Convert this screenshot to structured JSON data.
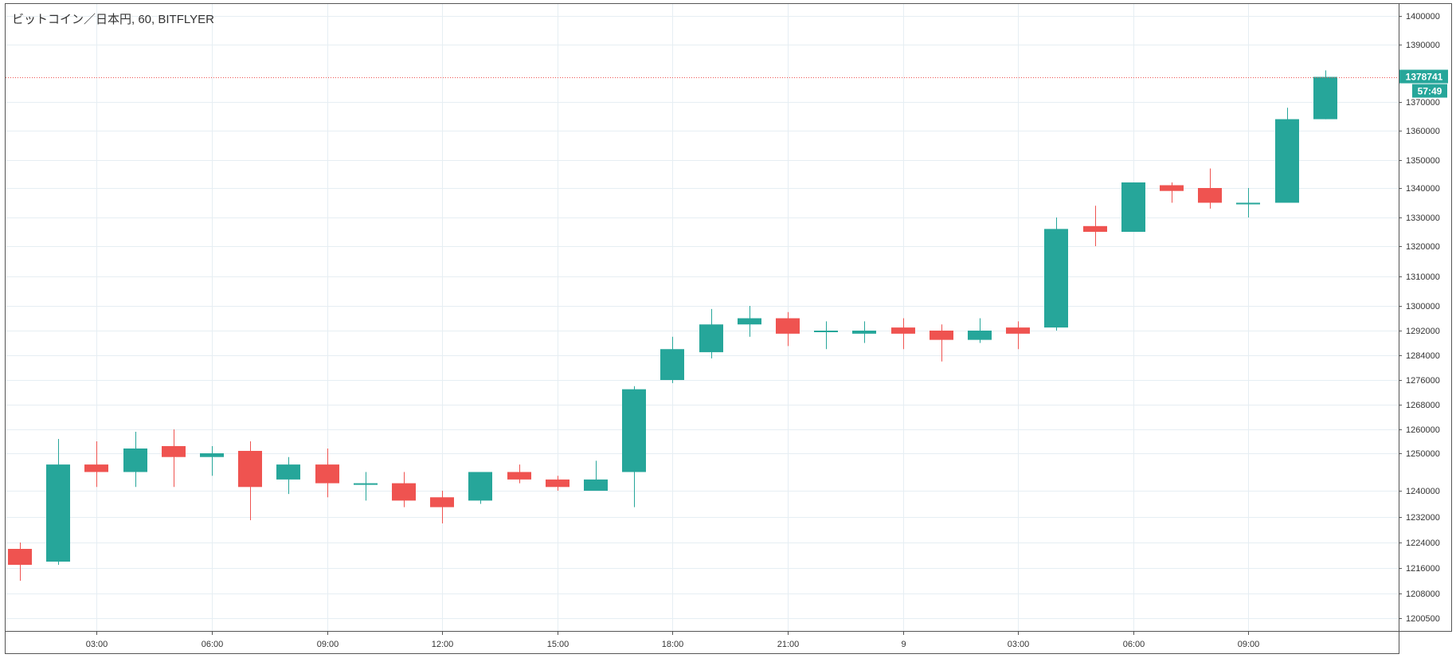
{
  "chart_data": {
    "type": "candlestick",
    "title": "ビットコイン／日本円, 60, BITFLYER",
    "symbol": "ビットコイン／日本円",
    "interval": "60",
    "exchange": "BITFLYER",
    "x_tick_labels": [
      "03:00",
      "06:00",
      "09:00",
      "12:00",
      "15:00",
      "18:00",
      "21:00",
      "9",
      "03:00",
      "06:00",
      "09:00"
    ],
    "y_tick_labels": [
      1400000,
      1390000,
      1370000,
      1360000,
      1350000,
      1340000,
      1330000,
      1320000,
      1310000,
      1300000,
      1292000,
      1284000,
      1276000,
      1268000,
      1260000,
      1250000,
      1240000,
      1232000,
      1224000,
      1216000,
      1208000,
      1200500
    ],
    "grid": true,
    "colors": {
      "up": "#26a69a",
      "down": "#ef5350",
      "last_price_line": "#ef5350",
      "last_price_label_bg": "#26a69a",
      "grid": "#e6eef3",
      "axis_text": "#333333"
    },
    "last_price": {
      "value": "1378741",
      "countdown": "57:49"
    },
    "candles": [
      {
        "o": 1222000,
        "h": 1224000,
        "l": 1212000,
        "c": 1217000
      },
      {
        "o": 1218000,
        "h": 1256000,
        "l": 1217000,
        "c": 1247000
      },
      {
        "o": 1247000,
        "h": 1255000,
        "l": 1241000,
        "c": 1245000
      },
      {
        "o": 1245000,
        "h": 1259000,
        "l": 1241000,
        "c": 1252000
      },
      {
        "o": 1253000,
        "h": 1260000,
        "l": 1241000,
        "c": 1249000
      },
      {
        "o": 1249000,
        "h": 1253000,
        "l": 1244000,
        "c": 1250000
      },
      {
        "o": 1251000,
        "h": 1255000,
        "l": 1231000,
        "c": 1241000
      },
      {
        "o": 1243000,
        "h": 1249000,
        "l": 1239000,
        "c": 1247000
      },
      {
        "o": 1247000,
        "h": 1252000,
        "l": 1238000,
        "c": 1242000
      },
      {
        "o": 1242000,
        "h": 1245000,
        "l": 1237000,
        "c": 1242000
      },
      {
        "o": 1242000,
        "h": 1245000,
        "l": 1235000,
        "c": 1237000
      },
      {
        "o": 1238000,
        "h": 1240000,
        "l": 1230000,
        "c": 1235000
      },
      {
        "o": 1237000,
        "h": 1245000,
        "l": 1236000,
        "c": 1245000
      },
      {
        "o": 1245000,
        "h": 1247000,
        "l": 1242000,
        "c": 1243000
      },
      {
        "o": 1243000,
        "h": 1244000,
        "l": 1240000,
        "c": 1241000
      },
      {
        "o": 1240000,
        "h": 1248000,
        "l": 1240000,
        "c": 1243000
      },
      {
        "o": 1245000,
        "h": 1274000,
        "l": 1235000,
        "c": 1273000
      },
      {
        "o": 1276000,
        "h": 1290000,
        "l": 1275000,
        "c": 1286000
      },
      {
        "o": 1285000,
        "h": 1299000,
        "l": 1283000,
        "c": 1294000
      },
      {
        "o": 1294000,
        "h": 1300000,
        "l": 1290000,
        "c": 1296000
      },
      {
        "o": 1296000,
        "h": 1298000,
        "l": 1287000,
        "c": 1291000
      },
      {
        "o": 1292000,
        "h": 1295000,
        "l": 1286000,
        "c": 1292000
      },
      {
        "o": 1291000,
        "h": 1295000,
        "l": 1288000,
        "c": 1292000
      },
      {
        "o": 1293000,
        "h": 1296000,
        "l": 1286000,
        "c": 1291000
      },
      {
        "o": 1292000,
        "h": 1294000,
        "l": 1282000,
        "c": 1289000
      },
      {
        "o": 1289000,
        "h": 1296000,
        "l": 1288000,
        "c": 1292000
      },
      {
        "o": 1293000,
        "h": 1295000,
        "l": 1286000,
        "c": 1291000
      },
      {
        "o": 1293000,
        "h": 1330000,
        "l": 1292000,
        "c": 1326000
      },
      {
        "o": 1327000,
        "h": 1334000,
        "l": 1320000,
        "c": 1325000
      },
      {
        "o": 1325000,
        "h": 1342000,
        "l": 1325000,
        "c": 1342000
      },
      {
        "o": 1341000,
        "h": 1342000,
        "l": 1335000,
        "c": 1339000
      },
      {
        "o": 1340000,
        "h": 1347000,
        "l": 1333000,
        "c": 1335000
      },
      {
        "o": 1335000,
        "h": 1340000,
        "l": 1330000,
        "c": 1335000
      },
      {
        "o": 1335000,
        "h": 1368000,
        "l": 1335000,
        "c": 1364000
      },
      {
        "o": 1364000,
        "h": 1381000,
        "l": 1364000,
        "c": 1378741
      }
    ]
  }
}
